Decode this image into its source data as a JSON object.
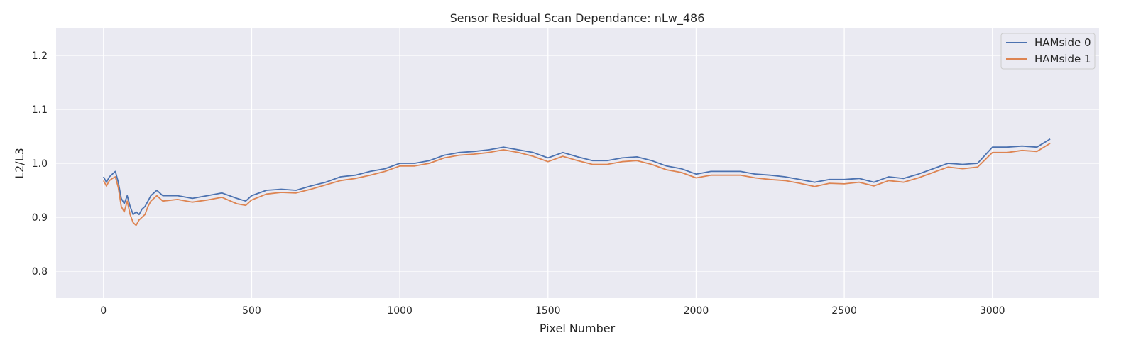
{
  "chart_data": {
    "type": "line",
    "title": "Sensor Residual Scan Dependance: nLw_486",
    "xlabel": "Pixel Number",
    "ylabel": "L2/L3",
    "xlim": [
      -160,
      3360
    ],
    "ylim": [
      0.75,
      1.25
    ],
    "xticks": [
      0,
      500,
      1000,
      1500,
      2000,
      2500,
      3000
    ],
    "yticks": [
      0.8,
      0.9,
      1.0,
      1.1,
      1.2
    ],
    "xtick_labels": [
      "0",
      "500",
      "1000",
      "1500",
      "2000",
      "2500",
      "3000"
    ],
    "ytick_labels": [
      "0.8",
      "0.9",
      "1.0",
      "1.1",
      "1.2"
    ],
    "grid": true,
    "background": "#eaeaf2",
    "legend_position": "top-right",
    "series": [
      {
        "name": "HAMside 0",
        "color": "#4c72b0",
        "x": [
          0,
          10,
          20,
          30,
          40,
          50,
          60,
          70,
          80,
          90,
          100,
          110,
          120,
          130,
          140,
          150,
          160,
          170,
          180,
          190,
          200,
          250,
          300,
          350,
          400,
          450,
          480,
          500,
          550,
          600,
          650,
          700,
          750,
          800,
          850,
          900,
          950,
          1000,
          1050,
          1100,
          1150,
          1200,
          1250,
          1300,
          1350,
          1400,
          1450,
          1500,
          1550,
          1600,
          1650,
          1700,
          1750,
          1800,
          1850,
          1900,
          1950,
          2000,
          2050,
          2100,
          2150,
          2200,
          2250,
          2300,
          2350,
          2400,
          2450,
          2500,
          2550,
          2600,
          2650,
          2700,
          2750,
          2800,
          2850,
          2900,
          2950,
          3000,
          3050,
          3100,
          3150,
          3195
        ],
        "y": [
          0.975,
          0.965,
          0.975,
          0.98,
          0.985,
          0.965,
          0.935,
          0.925,
          0.94,
          0.92,
          0.905,
          0.91,
          0.905,
          0.915,
          0.92,
          0.93,
          0.94,
          0.945,
          0.95,
          0.945,
          0.94,
          0.94,
          0.935,
          0.94,
          0.945,
          0.935,
          0.93,
          0.94,
          0.95,
          0.952,
          0.95,
          0.958,
          0.965,
          0.975,
          0.978,
          0.985,
          0.99,
          1.0,
          1.0,
          1.005,
          1.015,
          1.02,
          1.022,
          1.025,
          1.03,
          1.025,
          1.02,
          1.01,
          1.02,
          1.012,
          1.005,
          1.005,
          1.01,
          1.012,
          1.005,
          0.995,
          0.99,
          0.98,
          0.985,
          0.985,
          0.985,
          0.98,
          0.978,
          0.975,
          0.97,
          0.965,
          0.97,
          0.97,
          0.972,
          0.965,
          0.975,
          0.972,
          0.98,
          0.99,
          1.0,
          0.998,
          1.0,
          1.03,
          1.03,
          1.032,
          1.03,
          1.045
        ]
      },
      {
        "name": "HAMside 1",
        "color": "#dd8452",
        "x": [
          0,
          10,
          20,
          30,
          40,
          50,
          60,
          70,
          80,
          90,
          100,
          110,
          120,
          130,
          140,
          150,
          160,
          170,
          180,
          190,
          200,
          250,
          300,
          350,
          400,
          450,
          480,
          500,
          550,
          600,
          650,
          700,
          750,
          800,
          850,
          900,
          950,
          1000,
          1050,
          1100,
          1150,
          1200,
          1250,
          1300,
          1350,
          1400,
          1450,
          1500,
          1550,
          1600,
          1650,
          1700,
          1750,
          1800,
          1850,
          1900,
          1950,
          2000,
          2050,
          2100,
          2150,
          2200,
          2250,
          2300,
          2350,
          2400,
          2450,
          2500,
          2550,
          2600,
          2650,
          2700,
          2750,
          2800,
          2850,
          2900,
          2950,
          3000,
          3050,
          3100,
          3150,
          3195
        ],
        "y": [
          0.968,
          0.958,
          0.968,
          0.972,
          0.975,
          0.955,
          0.92,
          0.91,
          0.93,
          0.905,
          0.89,
          0.885,
          0.895,
          0.9,
          0.905,
          0.92,
          0.93,
          0.935,
          0.94,
          0.935,
          0.93,
          0.933,
          0.928,
          0.932,
          0.937,
          0.925,
          0.922,
          0.932,
          0.943,
          0.946,
          0.945,
          0.952,
          0.96,
          0.968,
          0.972,
          0.978,
          0.985,
          0.995,
          0.995,
          1.0,
          1.01,
          1.015,
          1.017,
          1.02,
          1.025,
          1.02,
          1.013,
          1.003,
          1.013,
          1.005,
          0.998,
          0.998,
          1.003,
          1.005,
          0.998,
          0.988,
          0.983,
          0.973,
          0.978,
          0.978,
          0.978,
          0.973,
          0.97,
          0.968,
          0.963,
          0.957,
          0.963,
          0.962,
          0.965,
          0.958,
          0.968,
          0.965,
          0.973,
          0.983,
          0.993,
          0.99,
          0.993,
          1.02,
          1.02,
          1.024,
          1.022,
          1.037
        ]
      }
    ]
  }
}
